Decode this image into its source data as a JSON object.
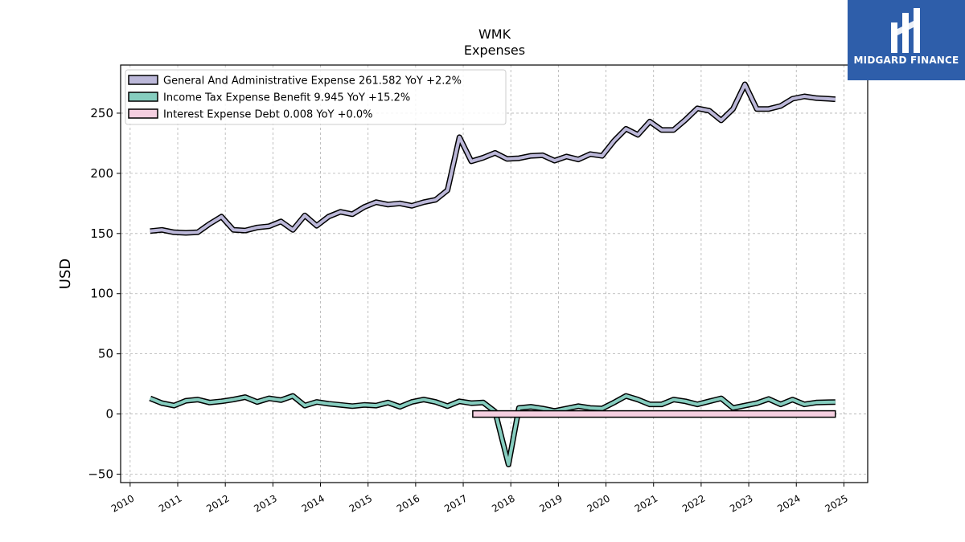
{
  "chart_data": {
    "type": "line",
    "title": "WMK",
    "subtitle": "Expenses",
    "ylabel": "USD",
    "xlabel": "",
    "ylim": [
      -57,
      290
    ],
    "xlim": [
      2009.8,
      2025.5
    ],
    "yticks": [
      -50,
      0,
      50,
      100,
      150,
      200,
      250
    ],
    "xticks": [
      "2010",
      "2011",
      "2012",
      "2013",
      "2014",
      "2015",
      "2016",
      "2017",
      "2018",
      "2019",
      "2020",
      "2021",
      "2022",
      "2023",
      "2024",
      "2025"
    ],
    "grid": true,
    "legend_position": "top-left",
    "series": [
      {
        "name": "General And Administrative Expense",
        "legend_label": "General And Administrative Expense  261.582 YoY +2.2%",
        "color": "#bcb8d9",
        "points": [
          [
            2010.42,
            152
          ],
          [
            2010.67,
            153
          ],
          [
            2010.92,
            151
          ],
          [
            2011.17,
            150.5
          ],
          [
            2011.42,
            151
          ],
          [
            2011.67,
            158
          ],
          [
            2011.92,
            164
          ],
          [
            2012.17,
            153
          ],
          [
            2012.42,
            152.5
          ],
          [
            2012.67,
            155
          ],
          [
            2012.92,
            156
          ],
          [
            2013.17,
            160
          ],
          [
            2013.42,
            153
          ],
          [
            2013.67,
            165
          ],
          [
            2013.92,
            156.5
          ],
          [
            2014.17,
            164
          ],
          [
            2014.42,
            168
          ],
          [
            2014.67,
            166
          ],
          [
            2014.92,
            172
          ],
          [
            2015.17,
            176
          ],
          [
            2015.42,
            174
          ],
          [
            2015.67,
            175
          ],
          [
            2015.92,
            173
          ],
          [
            2016.17,
            176
          ],
          [
            2016.42,
            178
          ],
          [
            2016.67,
            186
          ],
          [
            2016.92,
            230
          ],
          [
            2017.17,
            210
          ],
          [
            2017.42,
            213
          ],
          [
            2017.67,
            217
          ],
          [
            2017.92,
            212
          ],
          [
            2018.17,
            212.5
          ],
          [
            2018.42,
            214.5
          ],
          [
            2018.67,
            215
          ],
          [
            2018.92,
            210.5
          ],
          [
            2019.17,
            214
          ],
          [
            2019.42,
            211.5
          ],
          [
            2019.67,
            216
          ],
          [
            2019.92,
            214.5
          ],
          [
            2020.17,
            227
          ],
          [
            2020.42,
            237
          ],
          [
            2020.67,
            232
          ],
          [
            2020.92,
            243
          ],
          [
            2021.17,
            236
          ],
          [
            2021.42,
            236
          ],
          [
            2021.67,
            244.5
          ],
          [
            2021.92,
            254
          ],
          [
            2022.17,
            252
          ],
          [
            2022.42,
            244
          ],
          [
            2022.67,
            253.5
          ],
          [
            2022.92,
            274
          ],
          [
            2023.17,
            253.5
          ],
          [
            2023.42,
            253.5
          ],
          [
            2023.67,
            256
          ],
          [
            2023.92,
            262
          ],
          [
            2024.17,
            264
          ],
          [
            2024.42,
            262.5
          ],
          [
            2024.67,
            262
          ],
          [
            2024.82,
            261.6
          ]
        ]
      },
      {
        "name": "Income Tax Expense Benefit",
        "legend_label": "Income Tax Expense Benefit  9.945 YoY +15.2%",
        "color": "#86cdbf",
        "points": [
          [
            2010.42,
            13
          ],
          [
            2010.67,
            9
          ],
          [
            2010.92,
            7
          ],
          [
            2011.17,
            11
          ],
          [
            2011.42,
            12
          ],
          [
            2011.67,
            9.5
          ],
          [
            2011.92,
            10.5
          ],
          [
            2012.17,
            12
          ],
          [
            2012.42,
            14
          ],
          [
            2012.67,
            10
          ],
          [
            2012.92,
            13
          ],
          [
            2013.17,
            11.5
          ],
          [
            2013.42,
            15
          ],
          [
            2013.67,
            7
          ],
          [
            2013.92,
            10
          ],
          [
            2014.17,
            8.5
          ],
          [
            2014.42,
            7.5
          ],
          [
            2014.67,
            6.5
          ],
          [
            2014.92,
            7.5
          ],
          [
            2015.17,
            7
          ],
          [
            2015.42,
            9.5
          ],
          [
            2015.67,
            6
          ],
          [
            2015.92,
            10
          ],
          [
            2016.17,
            12
          ],
          [
            2016.42,
            10
          ],
          [
            2016.67,
            6.5
          ],
          [
            2016.92,
            10.5
          ],
          [
            2017.17,
            9
          ],
          [
            2017.42,
            9.5
          ],
          [
            2017.67,
            2
          ],
          [
            2017.95,
            -42
          ],
          [
            2018.17,
            5
          ],
          [
            2018.42,
            6
          ],
          [
            2018.67,
            4.5
          ],
          [
            2018.92,
            2.5
          ],
          [
            2019.17,
            4.5
          ],
          [
            2019.42,
            6.5
          ],
          [
            2019.67,
            5
          ],
          [
            2019.92,
            4.5
          ],
          [
            2020.17,
            9.5
          ],
          [
            2020.42,
            15
          ],
          [
            2020.67,
            12
          ],
          [
            2020.92,
            8
          ],
          [
            2021.17,
            8
          ],
          [
            2021.42,
            12
          ],
          [
            2021.67,
            10.5
          ],
          [
            2021.92,
            8
          ],
          [
            2022.17,
            10.5
          ],
          [
            2022.42,
            13
          ],
          [
            2022.67,
            5
          ],
          [
            2022.92,
            7
          ],
          [
            2023.17,
            9
          ],
          [
            2023.42,
            12.5
          ],
          [
            2023.67,
            8
          ],
          [
            2023.92,
            12
          ],
          [
            2024.17,
            8
          ],
          [
            2024.42,
            9.5
          ],
          [
            2024.67,
            9.8
          ],
          [
            2024.82,
            9.9
          ]
        ]
      },
      {
        "name": "Interest Expense Debt",
        "legend_label": "Interest Expense Debt  0.008 YoY +0.0%",
        "color": "#f5cfe0",
        "points": [
          [
            2017.2,
            0
          ],
          [
            2024.82,
            0
          ]
        ]
      }
    ]
  },
  "logo": {
    "text": "MIDGARD FINANCE",
    "color": "#2e5eaa"
  }
}
